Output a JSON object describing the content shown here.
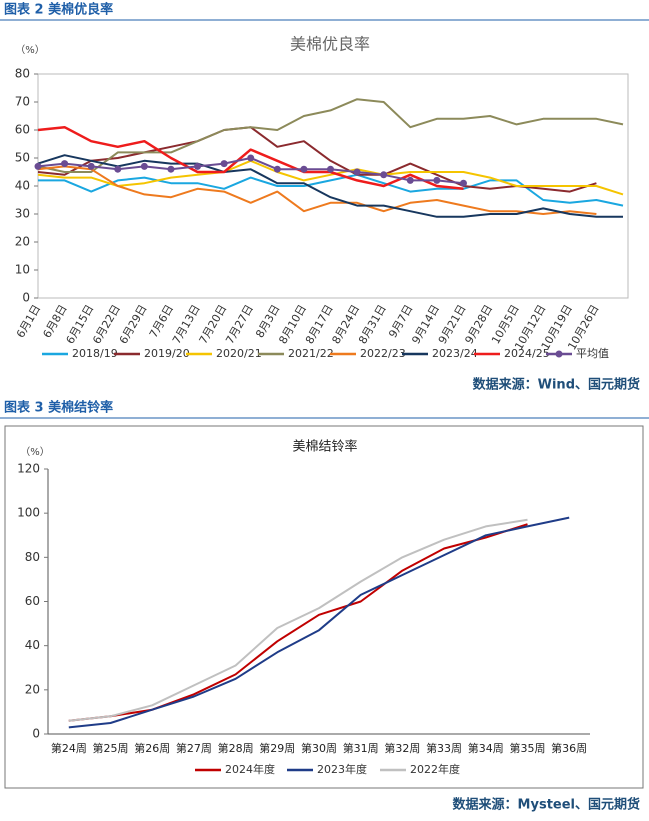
{
  "chart_data": [
    {
      "type": "line",
      "caption": "图表 2  美棉优良率",
      "title": "美棉优良率",
      "y_label": "（%）",
      "source": "数据来源：Wind、国元期货",
      "categories": [
        "6月1日",
        "6月8日",
        "6月15日",
        "6月22日",
        "6月29日",
        "7月6日",
        "7月13日",
        "7月20日",
        "7月27日",
        "8月3日",
        "8月10日",
        "8月17日",
        "8月24日",
        "8月31日",
        "9月7日",
        "9月14日",
        "9月21日",
        "9月28日",
        "10月5日",
        "10月12日",
        "10月19日",
        "10月26日",
        null
      ],
      "ylim": [
        0,
        80
      ],
      "yticks": [
        0,
        10,
        20,
        30,
        40,
        50,
        60,
        70,
        80
      ],
      "legend": "bottom",
      "series": [
        {
          "name": "2018/19",
          "color": "#1aa7e0",
          "values": [
            42,
            42,
            38,
            42,
            43,
            41,
            41,
            39,
            43,
            40,
            40,
            42,
            44,
            41,
            38,
            39,
            39,
            42,
            42,
            35,
            34,
            35,
            33
          ]
        },
        {
          "name": "2019/20",
          "color": "#8b2a2e",
          "values": [
            45,
            44,
            49,
            50,
            52,
            54,
            56,
            60,
            61,
            54,
            56,
            49,
            44,
            44,
            48,
            44,
            40,
            39,
            40,
            39,
            38,
            41,
            null
          ]
        },
        {
          "name": "2020/21",
          "color": "#f5c400",
          "values": [
            44,
            43,
            43,
            40,
            41,
            43,
            44,
            45,
            49,
            45,
            42,
            44,
            46,
            44,
            45,
            45,
            45,
            43,
            40,
            40,
            40,
            40,
            37
          ]
        },
        {
          "name": "2021/22",
          "color": "#8c8a5a",
          "values": [
            47,
            45,
            45,
            52,
            52,
            52,
            56,
            60,
            61,
            60,
            65,
            67,
            71,
            70,
            61,
            64,
            64,
            65,
            62,
            64,
            64,
            64,
            62
          ]
        },
        {
          "name": "2022/23",
          "color": "#ee7a1e",
          "values": [
            46,
            47,
            46,
            40,
            37,
            36,
            39,
            38,
            34,
            38,
            31,
            34,
            34,
            31,
            34,
            35,
            33,
            31,
            31,
            30,
            31,
            30,
            null
          ]
        },
        {
          "name": "2023/24",
          "color": "#17375e",
          "values": [
            48,
            51,
            49,
            47,
            49,
            48,
            48,
            45,
            46,
            41,
            41,
            36,
            33,
            33,
            31,
            29,
            29,
            30,
            30,
            32,
            30,
            29,
            29
          ]
        },
        {
          "name": "2024/25",
          "color": "#ee1c1c",
          "values": [
            60,
            61,
            56,
            54,
            56,
            50,
            45,
            45,
            53,
            49,
            45,
            45,
            42,
            40,
            44,
            40,
            39,
            null,
            null,
            null,
            null,
            null,
            null
          ]
        },
        {
          "name": "平均值",
          "color": "#6a4c93",
          "marker": "circle",
          "values": [
            47,
            48,
            47,
            46,
            47,
            46,
            47,
            48,
            50,
            46,
            46,
            46,
            45,
            44,
            42,
            42,
            41,
            null,
            null,
            null,
            null,
            null,
            null
          ]
        }
      ]
    },
    {
      "type": "line",
      "caption": "图表 3  美棉结铃率",
      "title": "美棉结铃率",
      "y_label": "（%）",
      "source": "数据来源：Mysteel、国元期货",
      "categories": [
        "第24周",
        "第25周",
        "第26周",
        "第27周",
        "第28周",
        "第29周",
        "第30周",
        "第31周",
        "第32周",
        "第33周",
        "第34周",
        "第35周",
        "第36周"
      ],
      "ylim": [
        0,
        120
      ],
      "yticks": [
        0,
        20,
        40,
        60,
        80,
        100,
        120
      ],
      "legend": "bottom",
      "series": [
        {
          "name": "2024年度",
          "color": "#c00000",
          "values": [
            6,
            8,
            11,
            18,
            27,
            42,
            54,
            60,
            74,
            84,
            89,
            95,
            null
          ]
        },
        {
          "name": "2023年度",
          "color": "#1f3c88",
          "values": [
            3,
            5,
            11,
            17,
            25,
            37,
            47,
            63,
            72,
            81,
            90,
            94,
            98
          ]
        },
        {
          "name": "2022年度",
          "color": "#c0c0c0",
          "values": [
            6,
            8,
            13,
            22,
            31,
            48,
            57,
            69,
            80,
            88,
            94,
            97,
            null
          ]
        }
      ]
    }
  ]
}
